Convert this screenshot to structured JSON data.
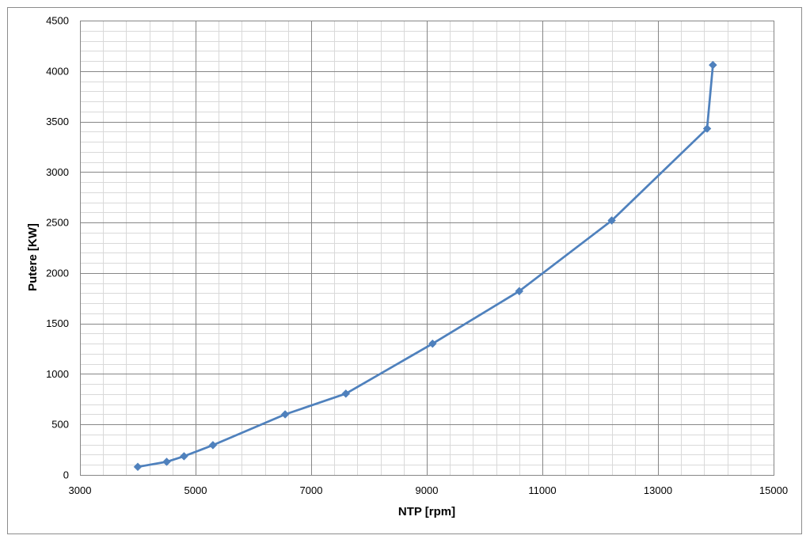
{
  "chart_data": {
    "type": "line",
    "title": "",
    "xlabel": "NTP [rpm]",
    "ylabel": "Putere  [KW]",
    "xlim": [
      3000,
      15000
    ],
    "ylim": [
      0,
      4500
    ],
    "x_ticks": [
      3000,
      5000,
      7000,
      9000,
      11000,
      13000,
      15000
    ],
    "y_ticks": [
      0,
      500,
      1000,
      1500,
      2000,
      2500,
      3000,
      3500,
      4000,
      4500
    ],
    "x_minor_step": 400,
    "y_minor_step": 100,
    "grid": true,
    "legend": "none",
    "marker": "diamond",
    "series": [
      {
        "color": "#4f81bd",
        "x": [
          4000,
          4500,
          4800,
          5300,
          6550,
          7600,
          9100,
          10600,
          12200,
          13850,
          13950
        ],
        "y": [
          80,
          130,
          185,
          295,
          600,
          805,
          1300,
          1820,
          2520,
          3430,
          4060
        ]
      }
    ]
  }
}
